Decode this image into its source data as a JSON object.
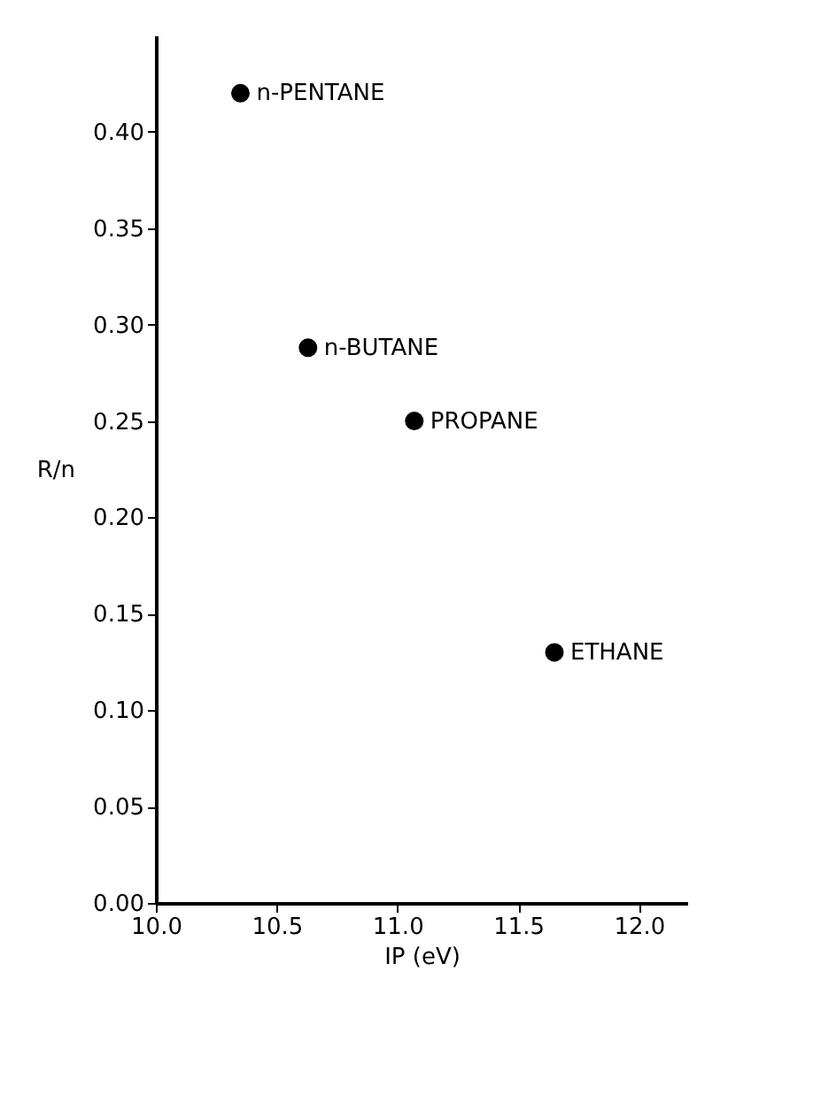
{
  "chart_data": {
    "type": "scatter",
    "xlabel": "IP (eV)",
    "ylabel": "R/n",
    "xlim": [
      10.0,
      12.2
    ],
    "ylim": [
      0,
      0.45
    ],
    "xticks": [
      {
        "value": 10,
        "label": "10.0"
      },
      {
        "value": 10.5,
        "label": "10.5"
      },
      {
        "value": 11,
        "label": "11.0"
      },
      {
        "value": 11.5,
        "label": "11.5"
      },
      {
        "value": 12,
        "label": "12.0"
      }
    ],
    "yticks": [
      {
        "value": 0,
        "label": "0.00"
      },
      {
        "value": 0.05,
        "label": "0.05"
      },
      {
        "value": 0.1,
        "label": "0.10"
      },
      {
        "value": 0.15,
        "label": "0.15"
      },
      {
        "value": 0.2,
        "label": "0.20"
      },
      {
        "value": 0.25,
        "label": "0.25"
      },
      {
        "value": 0.3,
        "label": "0.30"
      },
      {
        "value": 0.35,
        "label": "0.35"
      },
      {
        "value": 0.4,
        "label": "0.40"
      }
    ],
    "grid": false,
    "legend": false,
    "marker": "circle",
    "series": [
      {
        "name": "n-PENTANE",
        "color": "#000000",
        "x": [
          10.35
        ],
        "values": [
          0.42
        ]
      },
      {
        "name": "n-BUTANE",
        "color": "#000000",
        "x": [
          10.63
        ],
        "values": [
          0.288
        ]
      },
      {
        "name": "PROPANE",
        "color": "#000000",
        "x": [
          11.07
        ],
        "values": [
          0.25
        ]
      },
      {
        "name": "ETHANE",
        "color": "#000000",
        "x": [
          11.65
        ],
        "values": [
          0.13
        ]
      }
    ]
  }
}
